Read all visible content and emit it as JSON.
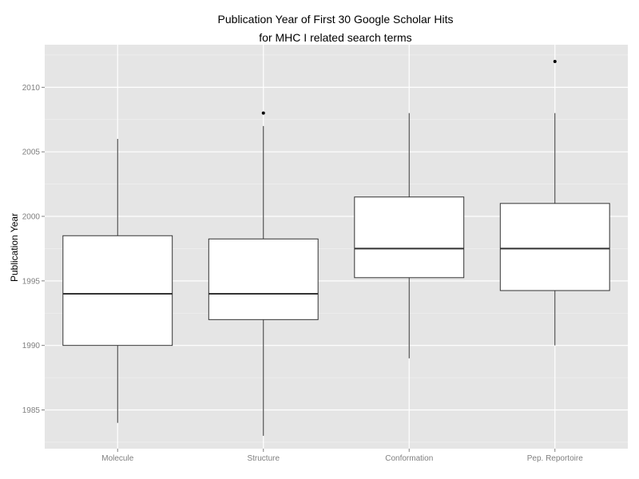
{
  "chart_data": {
    "type": "boxplot",
    "title": "Publication Year of First 30 Google Scholar Hits",
    "subtitle": "for MHC I related search terms",
    "xlabel": "",
    "ylabel": "Publication Year",
    "categories": [
      "Molecule",
      "Structure",
      "Conformation",
      "Pep. Reportoire"
    ],
    "boxes": [
      {
        "whisker_low": 1984,
        "q1": 1990,
        "median": 1994,
        "q3": 1998.5,
        "whisker_high": 2006,
        "outliers": []
      },
      {
        "whisker_low": 1983,
        "q1": 1992,
        "median": 1994,
        "q3": 1998.25,
        "whisker_high": 2007,
        "outliers": [
          2008
        ]
      },
      {
        "whisker_low": 1989,
        "q1": 1995.25,
        "median": 1997.5,
        "q3": 2001.5,
        "whisker_high": 2008,
        "outliers": []
      },
      {
        "whisker_low": 1990,
        "q1": 1994.25,
        "median": 1997.5,
        "q3": 2001,
        "whisker_high": 2008,
        "outliers": [
          2012
        ]
      }
    ],
    "ylim": [
      1982,
      2013.3
    ],
    "yticks": [
      1985,
      1990,
      1995,
      2000,
      2005,
      2010
    ],
    "ytick_labels": [
      "1985",
      "1990",
      "1995",
      "2000",
      "2005",
      "2010"
    ],
    "grid": true,
    "background": "#E5E5E5",
    "gridline_color": "#FFFFFF",
    "box_fill": "#FFFFFF",
    "box_stroke": "#333333",
    "tick_label_color": "#7F7F7F"
  }
}
